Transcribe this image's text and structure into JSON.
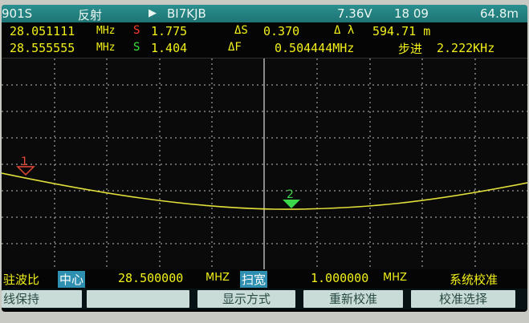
{
  "status": {
    "code": "901S",
    "mode": "反射",
    "play_icon": "play-triangle-icon",
    "callsign": "BI7KJB",
    "battery": "7.36V",
    "time": "18 09",
    "distance": "64.8m"
  },
  "marker1": {
    "freq": "28.051111",
    "unit": "MHz",
    "s_label": "S",
    "swr": "1.775",
    "delta_s_label": "ΔS",
    "delta_s": "0.370",
    "lambda_label": "Δ λ",
    "lambda": "594.71 m"
  },
  "marker2": {
    "freq": "28.555555",
    "unit": "MHz",
    "s_label": "S",
    "swr": "1.404",
    "delta_f_label": "ΔF",
    "delta_f": "0.504444MHz",
    "step_label": "步进",
    "step": "2.222KHz"
  },
  "plot": {
    "marker1_label": "1",
    "marker2_label": "2",
    "trace_color": "#e2e03a",
    "marker1_color": "#e84a3a",
    "marker2_color": "#3ad84a"
  },
  "bottom": {
    "measure": "驻波比",
    "center_label": "中心",
    "center_value": "28.500000",
    "center_unit": "MHZ",
    "span_label": "扫宽",
    "span_value": "1.000000",
    "span_unit": "MHZ",
    "calib": "系统校准"
  },
  "softkeys": [
    {
      "label": "线保持"
    },
    {
      "label": ""
    },
    {
      "label": "显示方式"
    },
    {
      "label": "重新校准"
    },
    {
      "label": "校准选择"
    }
  ]
}
